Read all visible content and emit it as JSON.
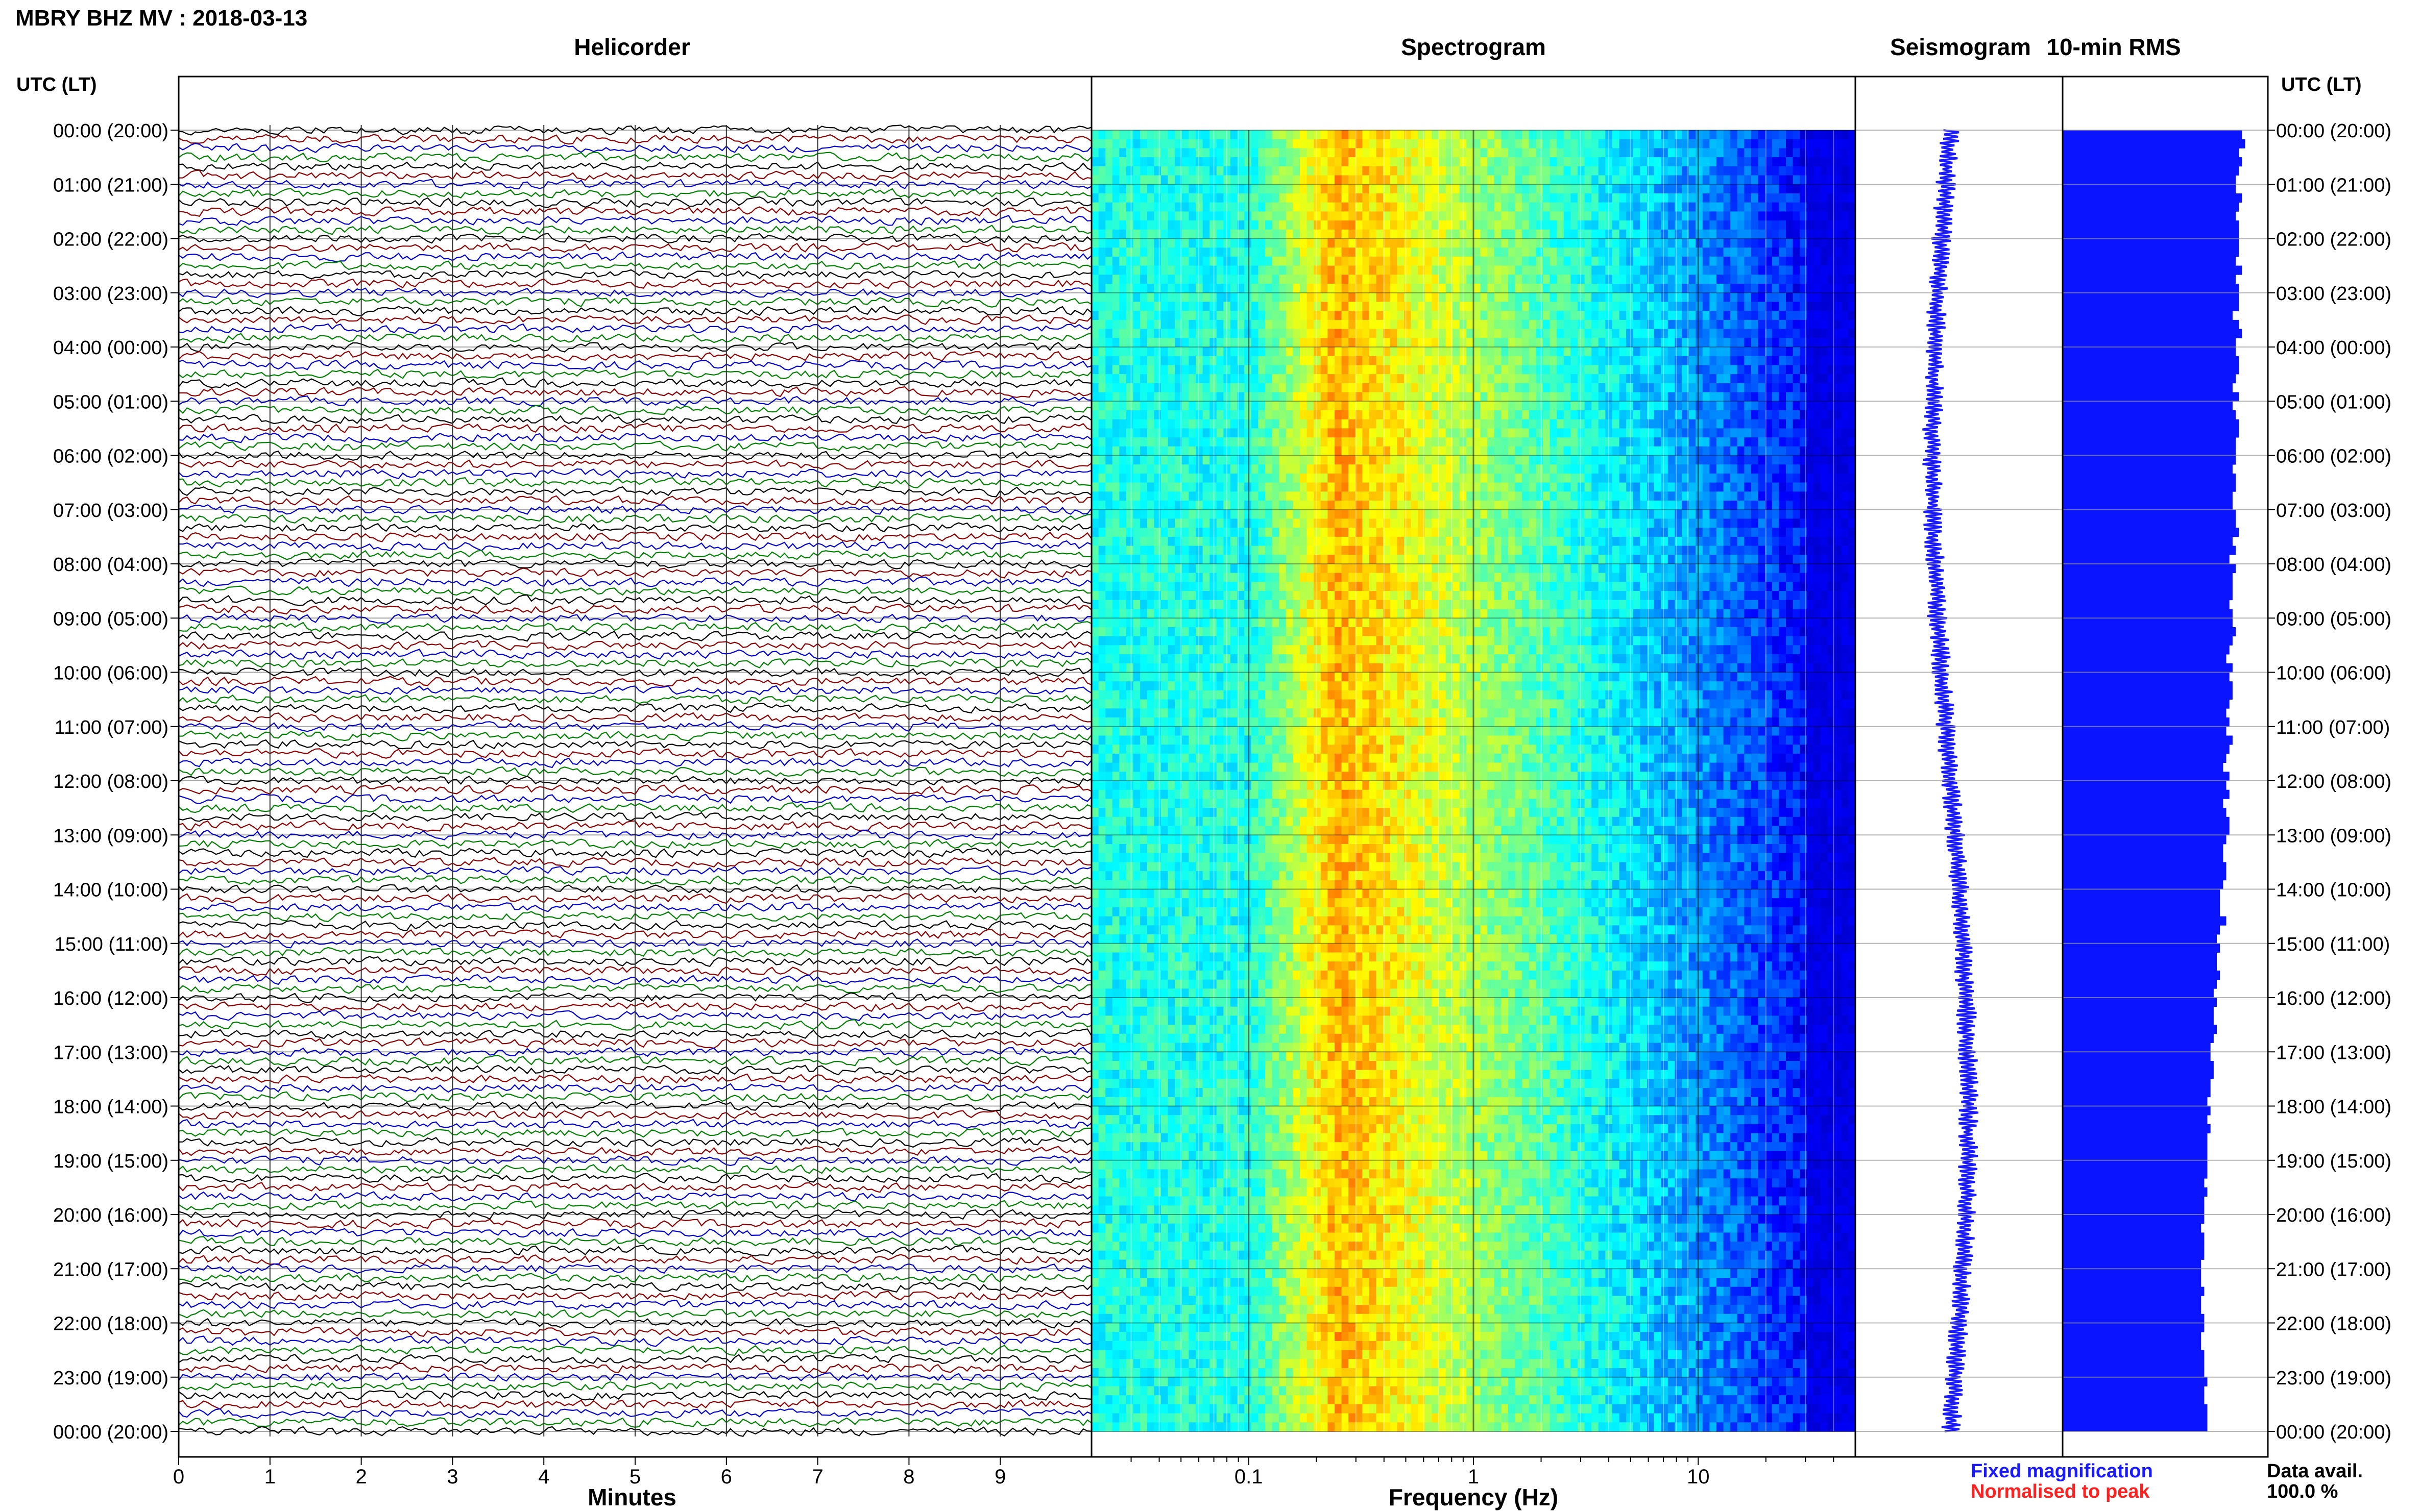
{
  "header": {
    "station_title": "MBRY BHZ MV : 2018-03-13",
    "utc_lt_left": "UTC (LT)",
    "utc_lt_right": "UTC (LT)"
  },
  "panels": {
    "helicorder": "Helicorder",
    "spectrogram": "Spectrogram",
    "seismogram": "Seismogram",
    "rms": "10-min RMS"
  },
  "footer": {
    "minutes_label": "Minutes",
    "frequency_label": "Frequency (Hz)",
    "fixed_magnification": "Fixed magnification",
    "normalised_to_peak": "Normalised to peak",
    "data_avail_label": "Data avail.",
    "data_avail_value": "100.0 %"
  },
  "colors": {
    "fixed_magnification": "#1a1aff",
    "normalised_to_peak": "#ff2020",
    "trace_colors": [
      "#000000",
      "#8b0000",
      "#0000cd",
      "#008000"
    ],
    "rms_bar": "#0a14ff",
    "seismogram": "#1a1aff"
  },
  "chart_data": [
    {
      "type": "line",
      "panel": "Helicorder",
      "xlabel": "Minutes",
      "x_ticks": [
        "0",
        "1",
        "2",
        "3",
        "4",
        "5",
        "6",
        "7",
        "8",
        "9"
      ],
      "xlim": [
        0,
        10
      ],
      "y_tick_labels": [
        "00:00 (20:00)",
        "01:00 (21:00)",
        "02:00 (22:00)",
        "03:00 (23:00)",
        "04:00 (00:00)",
        "05:00 (01:00)",
        "06:00 (02:00)",
        "07:00 (03:00)",
        "08:00 (04:00)",
        "09:00 (05:00)",
        "10:00 (06:00)",
        "11:00 (07:00)",
        "12:00 (08:00)",
        "13:00 (09:00)",
        "14:00 (10:00)",
        "15:00 (11:00)",
        "16:00 (12:00)",
        "17:00 (13:00)",
        "18:00 (14:00)",
        "19:00 (15:00)",
        "20:00 (16:00)",
        "21:00 (17:00)",
        "22:00 (18:00)",
        "23:00 (19:00)",
        "00:00 (20:00)"
      ],
      "lines_per_hour": 6,
      "trace_color_cycle": [
        "black",
        "darkred",
        "blue",
        "green"
      ]
    },
    {
      "type": "heatmap",
      "panel": "Spectrogram",
      "xlabel": "Frequency (Hz)",
      "x_scale": "log",
      "xlim": [
        0.02,
        50
      ],
      "x_tick_labels": [
        "0.1",
        "1",
        "10"
      ],
      "colormap": "jet",
      "energy_peak_hz": 0.25
    },
    {
      "type": "line",
      "panel": "Seismogram",
      "description_values": "long-period envelope drifting left toward 18:00 then back right"
    },
    {
      "type": "bar",
      "panel": "10-min RMS",
      "orientation": "horizontal",
      "values": [
        0.57,
        0.58,
        0.56,
        0.57,
        0.56,
        0.55,
        0.55,
        0.57,
        0.56,
        0.55,
        0.56,
        0.56,
        0.56,
        0.56,
        0.55,
        0.57,
        0.55,
        0.56,
        0.56,
        0.56,
        0.54,
        0.56,
        0.57,
        0.55,
        0.55,
        0.56,
        0.56,
        0.55,
        0.54,
        0.56,
        0.54,
        0.55,
        0.56,
        0.56,
        0.55,
        0.55,
        0.55,
        0.54,
        0.55,
        0.55,
        0.54,
        0.54,
        0.55,
        0.55,
        0.56,
        0.54,
        0.55,
        0.53,
        0.55,
        0.54,
        0.54,
        0.54,
        0.53,
        0.54,
        0.54,
        0.55,
        0.54,
        0.53,
        0.52,
        0.54,
        0.53,
        0.54,
        0.54,
        0.53,
        0.52,
        0.53,
        0.52,
        0.54,
        0.53,
        0.52,
        0.51,
        0.53,
        0.52,
        0.53,
        0.51,
        0.52,
        0.53,
        0.53,
        0.52,
        0.51,
        0.51,
        0.52,
        0.52,
        0.51,
        0.5,
        0.5,
        0.5,
        0.52,
        0.5,
        0.49,
        0.5,
        0.49,
        0.49,
        0.5,
        0.49,
        0.48,
        0.49,
        0.48,
        0.48,
        0.49,
        0.48,
        0.47,
        0.47,
        0.48,
        0.48,
        0.47,
        0.47,
        0.46,
        0.47,
        0.46,
        0.47,
        0.46,
        0.46,
        0.46,
        0.46,
        0.46,
        0.45,
        0.46,
        0.45,
        0.45,
        0.45,
        0.44,
        0.45,
        0.45,
        0.45,
        0.44,
        0.44,
        0.44,
        0.45,
        0.44,
        0.44,
        0.45,
        0.45,
        0.44,
        0.44,
        0.45,
        0.45,
        0.45,
        0.46,
        0.45,
        0.45,
        0.46,
        0.46,
        0.46
      ]
    }
  ]
}
